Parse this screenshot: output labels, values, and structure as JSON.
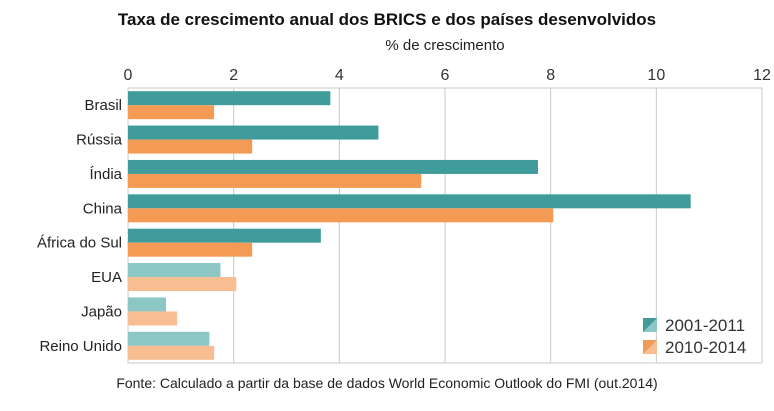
{
  "chart_data": {
    "type": "bar",
    "orientation": "horizontal",
    "title": "Taxa de crescimento anual dos BRICS e dos países desenvolvidos",
    "xlabel": "% de crescimento",
    "source": "Fonte: Calculado a partir da base de dados World Economic Outlook do FMI (out.2014)",
    "categories": [
      "Brasil",
      "Rússia",
      "Índia",
      "China",
      "África do Sul",
      "EUA",
      "Japão",
      "Reino Unido"
    ],
    "xlim": [
      0,
      12
    ],
    "ticks": [
      "0",
      "2",
      "4",
      "6",
      "8",
      "10",
      "12"
    ],
    "grid": true,
    "legend_position": "bottom-right",
    "series": [
      {
        "name": "2001-2011",
        "values": [
          3.83,
          4.74,
          7.76,
          10.65,
          3.65,
          1.75,
          0.72,
          1.54
        ],
        "color": "#3f9c9a",
        "light_color": "#8cc7c5"
      },
      {
        "name": "2010-2014",
        "values": [
          1.63,
          2.35,
          5.55,
          8.05,
          2.35,
          2.05,
          0.93,
          1.63
        ],
        "color": "#f39b54",
        "light_color": "#f8be91"
      }
    ],
    "light_from_index": 5
  }
}
